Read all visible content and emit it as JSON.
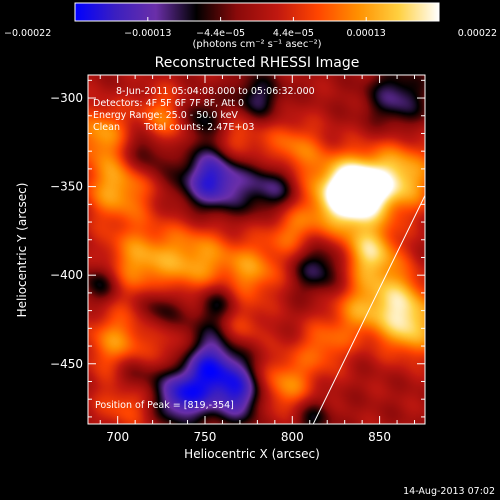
{
  "chart_data": {
    "type": "heatmap",
    "title": "Reconstructed RHESSI Image",
    "xlabel": "Heliocentric X (arcsec)",
    "ylabel": "Heliocentric Y (arcsec)",
    "xlim": [
      683,
      876
    ],
    "ylim": [
      -484,
      -287
    ],
    "x_ticks": [
      700,
      750,
      800,
      850
    ],
    "x_tick_labels": [
      "700",
      "750",
      "800",
      "850"
    ],
    "y_ticks": [
      -300,
      -350,
      -400,
      -450
    ],
    "y_tick_labels": [
      "−300",
      "−350",
      "−400",
      "−450"
    ],
    "colorbar": {
      "min": -0.00022,
      "max": 0.00022,
      "tick_labels": [
        "−0.00022",
        "−0.00013",
        "−4.4e−05",
        "4.4e−05",
        "0.00013",
        "0.00022"
      ],
      "unit_label": "(photons cm⁻² s⁻¹ asec⁻²)",
      "colors": [
        "#0000ff",
        "#3b1fc0",
        "#6a2fa8",
        "#000000",
        "#8a0a0a",
        "#c01810",
        "#ff4500",
        "#ff9000",
        "#ffd040",
        "#ffffff"
      ]
    },
    "annotations": [
      "8-Jun-2011 05:04:08.000 to 05:06:32.000",
      "Detectors: 4F 5F 6F 7F 8F, Att 0",
      "Energy Range: 25.0 - 50.0 keV",
      "Clean",
      "Total counts: 2.47E+03"
    ],
    "peak_label": "Position of Peak = [819,-354]",
    "peak": [
      819,
      -354
    ],
    "limb_line": [
      [
        812,
        -484
      ],
      [
        876,
        -355
      ]
    ],
    "blobs": [
      {
        "x": 830,
        "y": -355,
        "a": 1.0,
        "s": 15
      },
      {
        "x": 838,
        "y": -352,
        "a": 0.85,
        "s": 10
      },
      {
        "x": 862,
        "y": -345,
        "a": 0.75,
        "s": 14
      },
      {
        "x": 845,
        "y": -388,
        "a": 0.75,
        "s": 11
      },
      {
        "x": 868,
        "y": -430,
        "a": 0.7,
        "s": 12
      },
      {
        "x": 860,
        "y": -412,
        "a": 0.55,
        "s": 12
      },
      {
        "x": 838,
        "y": -420,
        "a": 0.5,
        "s": 12
      },
      {
        "x": 730,
        "y": -315,
        "a": 0.65,
        "s": 13
      },
      {
        "x": 700,
        "y": -350,
        "a": 0.65,
        "s": 14
      },
      {
        "x": 690,
        "y": -320,
        "a": 0.55,
        "s": 11
      },
      {
        "x": 745,
        "y": -392,
        "a": 0.6,
        "s": 16
      },
      {
        "x": 712,
        "y": -392,
        "a": 0.55,
        "s": 14
      },
      {
        "x": 778,
        "y": -398,
        "a": 0.5,
        "s": 12
      },
      {
        "x": 768,
        "y": -325,
        "a": 0.45,
        "s": 11
      },
      {
        "x": 800,
        "y": -330,
        "a": 0.5,
        "s": 12
      },
      {
        "x": 800,
        "y": -375,
        "a": 0.45,
        "s": 11
      },
      {
        "x": 700,
        "y": -438,
        "a": 0.55,
        "s": 13
      },
      {
        "x": 733,
        "y": -442,
        "a": 0.45,
        "s": 10
      },
      {
        "x": 705,
        "y": -470,
        "a": 0.45,
        "s": 11
      },
      {
        "x": 795,
        "y": -463,
        "a": 0.6,
        "s": 13
      },
      {
        "x": 770,
        "y": -430,
        "a": 0.4,
        "s": 10
      },
      {
        "x": 818,
        "y": -440,
        "a": 0.4,
        "s": 10
      },
      {
        "x": 755,
        "y": -345,
        "a": -0.9,
        "s": 14
      },
      {
        "x": 745,
        "y": -312,
        "a": -0.6,
        "s": 10
      },
      {
        "x": 790,
        "y": -350,
        "a": -0.55,
        "s": 11
      },
      {
        "x": 717,
        "y": -330,
        "a": -0.55,
        "s": 10
      },
      {
        "x": 752,
        "y": -452,
        "a": -0.9,
        "s": 16
      },
      {
        "x": 735,
        "y": -470,
        "a": -0.6,
        "s": 10
      },
      {
        "x": 772,
        "y": -468,
        "a": -0.6,
        "s": 11
      },
      {
        "x": 757,
        "y": -415,
        "a": -0.45,
        "s": 9
      },
      {
        "x": 708,
        "y": -458,
        "a": -0.45,
        "s": 9
      },
      {
        "x": 860,
        "y": -300,
        "a": -0.5,
        "s": 12
      },
      {
        "x": 815,
        "y": -395,
        "a": -0.5,
        "s": 11
      },
      {
        "x": 810,
        "y": -480,
        "a": -0.4,
        "s": 9
      },
      {
        "x": 725,
        "y": -418,
        "a": -0.4,
        "s": 9
      },
      {
        "x": 690,
        "y": -405,
        "a": -0.4,
        "s": 8
      },
      {
        "x": 780,
        "y": -300,
        "a": -0.45,
        "s": 10
      }
    ]
  },
  "footer": {
    "timestamp": "14-Aug-2013 07:02"
  }
}
